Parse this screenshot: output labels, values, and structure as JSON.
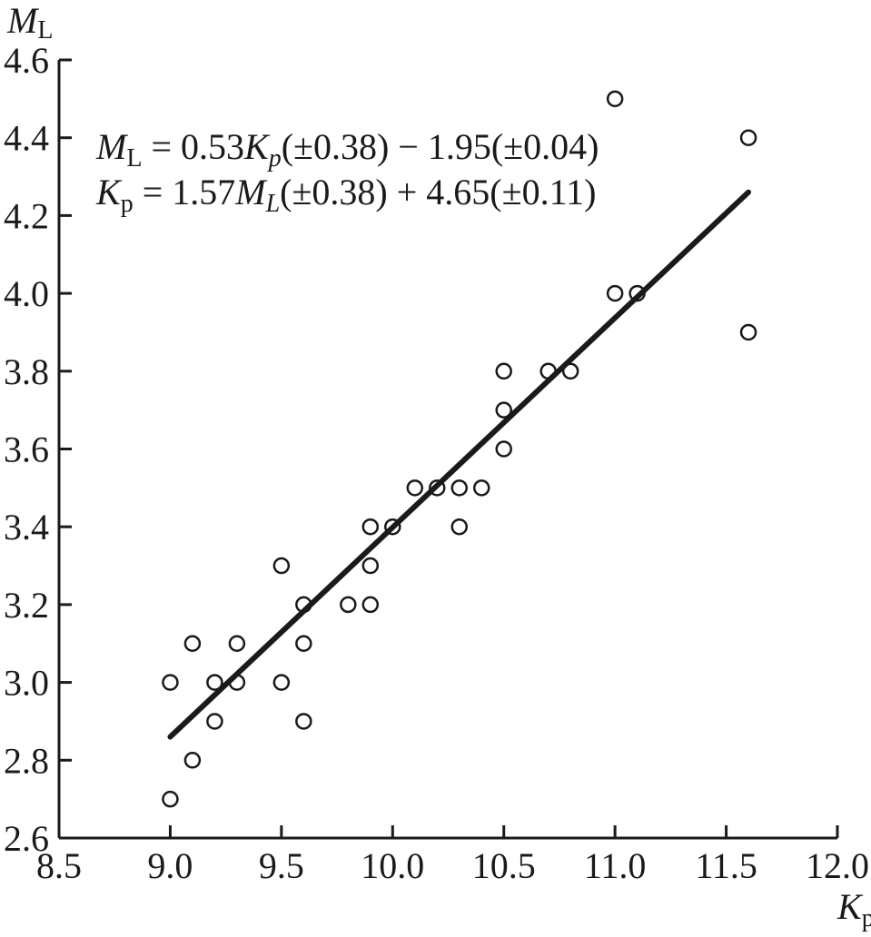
{
  "chart_data": {
    "type": "scatter",
    "x_axis": {
      "label_main": "K",
      "label_sub": "p",
      "range": [
        8.5,
        12.0
      ],
      "ticks": [
        8.5,
        9.0,
        9.5,
        10.0,
        10.5,
        11.0,
        11.5,
        12.0
      ],
      "tick_labels": [
        "8.5",
        "9.0",
        "9.5",
        "10.0",
        "10.5",
        "11.0",
        "11.5",
        "12.0"
      ]
    },
    "y_axis": {
      "label_main": "M",
      "label_sub": "L",
      "range": [
        2.6,
        4.6
      ],
      "ticks": [
        2.6,
        2.8,
        3.0,
        3.2,
        3.4,
        3.6,
        3.8,
        4.0,
        4.2,
        4.4,
        4.6
      ],
      "tick_labels": [
        "2.6",
        "2.8",
        "3.0",
        "3.2",
        "3.4",
        "3.6",
        "3.8",
        "4.0",
        "4.2",
        "4.4",
        "4.6"
      ]
    },
    "grid": false,
    "points": [
      {
        "x": 9.0,
        "y": 2.7
      },
      {
        "x": 9.0,
        "y": 3.0
      },
      {
        "x": 9.1,
        "y": 2.8
      },
      {
        "x": 9.1,
        "y": 3.1
      },
      {
        "x": 9.2,
        "y": 2.9
      },
      {
        "x": 9.2,
        "y": 3.0
      },
      {
        "x": 9.3,
        "y": 3.0
      },
      {
        "x": 9.3,
        "y": 3.1
      },
      {
        "x": 9.5,
        "y": 3.0
      },
      {
        "x": 9.5,
        "y": 3.3
      },
      {
        "x": 9.6,
        "y": 2.9
      },
      {
        "x": 9.6,
        "y": 3.1
      },
      {
        "x": 9.6,
        "y": 3.2
      },
      {
        "x": 9.8,
        "y": 3.2
      },
      {
        "x": 9.9,
        "y": 3.2
      },
      {
        "x": 9.9,
        "y": 3.3
      },
      {
        "x": 9.9,
        "y": 3.4
      },
      {
        "x": 10.0,
        "y": 3.4
      },
      {
        "x": 10.1,
        "y": 3.5
      },
      {
        "x": 10.2,
        "y": 3.5
      },
      {
        "x": 10.3,
        "y": 3.4
      },
      {
        "x": 10.3,
        "y": 3.5
      },
      {
        "x": 10.4,
        "y": 3.5
      },
      {
        "x": 10.5,
        "y": 3.6
      },
      {
        "x": 10.5,
        "y": 3.7
      },
      {
        "x": 10.5,
        "y": 3.8
      },
      {
        "x": 10.7,
        "y": 3.8
      },
      {
        "x": 10.8,
        "y": 3.8
      },
      {
        "x": 11.0,
        "y": 4.0
      },
      {
        "x": 11.0,
        "y": 4.5
      },
      {
        "x": 11.1,
        "y": 4.0
      },
      {
        "x": 11.6,
        "y": 3.9
      },
      {
        "x": 11.6,
        "y": 4.4
      }
    ],
    "fit_line": {
      "x": [
        9.0,
        11.6
      ],
      "y": [
        2.86,
        4.26
      ]
    },
    "annotations": {
      "eq1": {
        "lhs_main": "M",
        "lhs_sub": "L",
        "coef": " = 0.53",
        "var_main": "K",
        "var_sub": "p",
        "rest": "(±0.38) − 1.95(±0.04)"
      },
      "eq2": {
        "lhs_main": "K",
        "lhs_sub": "p",
        "coef": " = 1.57",
        "var_main": "M",
        "var_sub": "L",
        "rest": "(±0.38) + 4.65(±0.11)"
      }
    }
  }
}
